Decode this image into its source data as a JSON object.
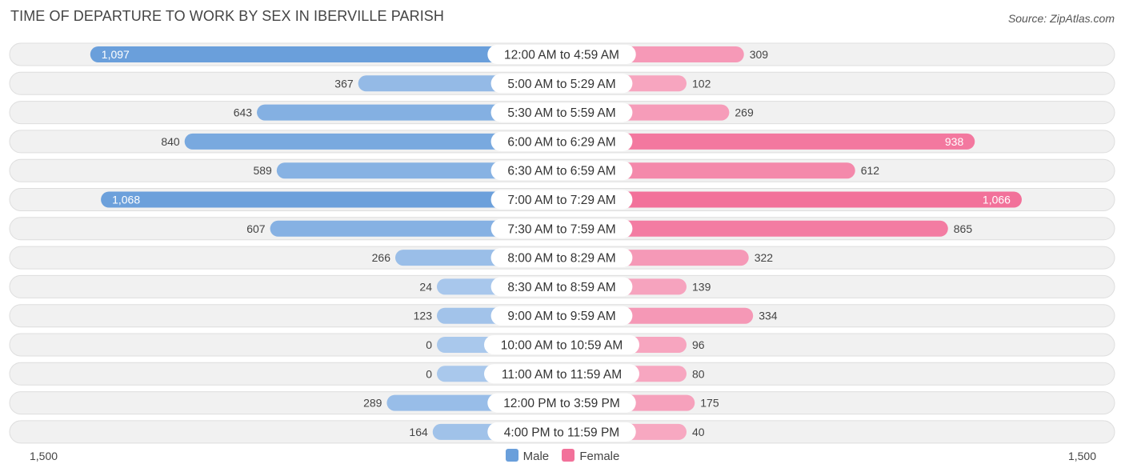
{
  "title": "TIME OF DEPARTURE TO WORK BY SEX IN IBERVILLE PARISH",
  "source": "Source: ZipAtlas.com",
  "colors": {
    "male_dark": "#6a9fdb",
    "male_light": "#a9c8ec",
    "female_dark": "#f2719a",
    "female_light": "#f7aac3",
    "row_bg": "#f1f1f1",
    "row_border": "#dedede"
  },
  "axis": {
    "left_label": "1,500",
    "right_label": "1,500"
  },
  "legend": {
    "male": "Male",
    "female": "Female"
  },
  "chart_data": {
    "type": "bar",
    "orientation": "horizontal-diverging",
    "title": "TIME OF DEPARTURE TO WORK BY SEX IN IBERVILLE PARISH",
    "xlim": [
      -1500,
      1500
    ],
    "categories": [
      "12:00 AM to 4:59 AM",
      "5:00 AM to 5:29 AM",
      "5:30 AM to 5:59 AM",
      "6:00 AM to 6:29 AM",
      "6:30 AM to 6:59 AM",
      "7:00 AM to 7:29 AM",
      "7:30 AM to 7:59 AM",
      "8:00 AM to 8:29 AM",
      "8:30 AM to 8:59 AM",
      "9:00 AM to 9:59 AM",
      "10:00 AM to 10:59 AM",
      "11:00 AM to 11:59 AM",
      "12:00 PM to 3:59 PM",
      "4:00 PM to 11:59 PM"
    ],
    "series": [
      {
        "name": "Male",
        "values": [
          1097,
          367,
          643,
          840,
          589,
          1068,
          607,
          266,
          24,
          123,
          0,
          0,
          289,
          164
        ],
        "labels": [
          "1,097",
          "367",
          "643",
          "840",
          "589",
          "1,068",
          "607",
          "266",
          "24",
          "123",
          "0",
          "0",
          "289",
          "164"
        ]
      },
      {
        "name": "Female",
        "values": [
          309,
          102,
          269,
          938,
          612,
          1066,
          865,
          322,
          139,
          334,
          96,
          80,
          175,
          40
        ],
        "labels": [
          "309",
          "102",
          "269",
          "938",
          "612",
          "1,066",
          "865",
          "322",
          "139",
          "334",
          "96",
          "80",
          "175",
          "40"
        ]
      }
    ],
    "legend": [
      "Male",
      "Female"
    ]
  }
}
